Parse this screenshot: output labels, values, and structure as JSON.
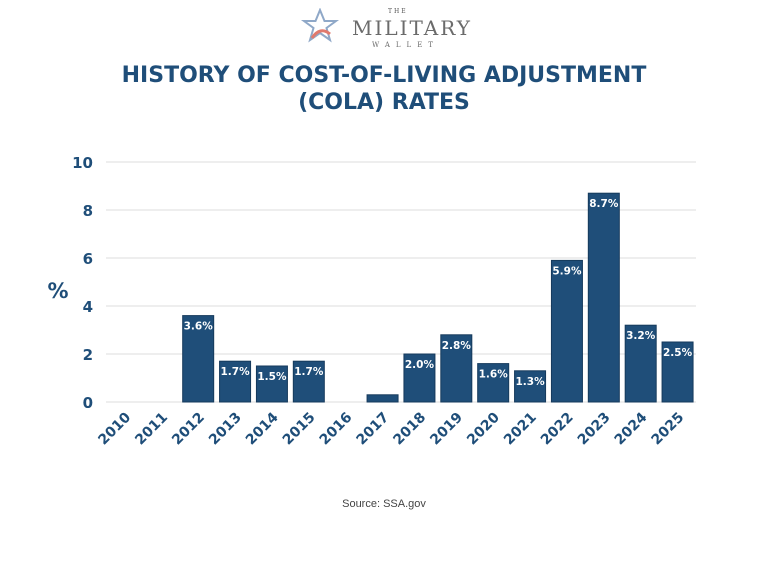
{
  "logo": {
    "the": "THE",
    "military": "MILITARY",
    "wallet": "WALLET",
    "icon": "star-icon",
    "colors": {
      "star_outline": "#8fa8c8",
      "star_accent": "#e07a6e"
    }
  },
  "title": {
    "line1": "HISTORY OF COST-OF-LIVING ADJUSTMENT",
    "line2": "(COLA) RATES"
  },
  "source": "Source: SSA.gov",
  "chart_data": {
    "type": "bar",
    "categories": [
      "2010",
      "2011",
      "2012",
      "2013",
      "2014",
      "2015",
      "2016",
      "2017",
      "2018",
      "2019",
      "2020",
      "2021",
      "2022",
      "2023",
      "2024",
      "2025"
    ],
    "values": [
      0,
      0,
      3.6,
      1.7,
      1.5,
      1.7,
      0,
      0.3,
      2.0,
      2.8,
      1.6,
      1.3,
      5.9,
      8.7,
      3.2,
      2.5
    ],
    "data_labels": [
      "",
      "",
      "3.6%",
      "1.7%",
      "1.5%",
      "1.7%",
      "",
      "",
      "2.0%",
      "2.8%",
      "1.6%",
      "1.3%",
      "5.9%",
      "8.7%",
      "3.2%",
      "2.5%"
    ],
    "xlabel": "",
    "ylabel": "%",
    "ylim": [
      0,
      10
    ],
    "yticks": [
      0,
      2,
      4,
      6,
      8,
      10
    ],
    "grid": true,
    "bar_color": "#1f4e79",
    "text_color": "#1f4e79"
  }
}
